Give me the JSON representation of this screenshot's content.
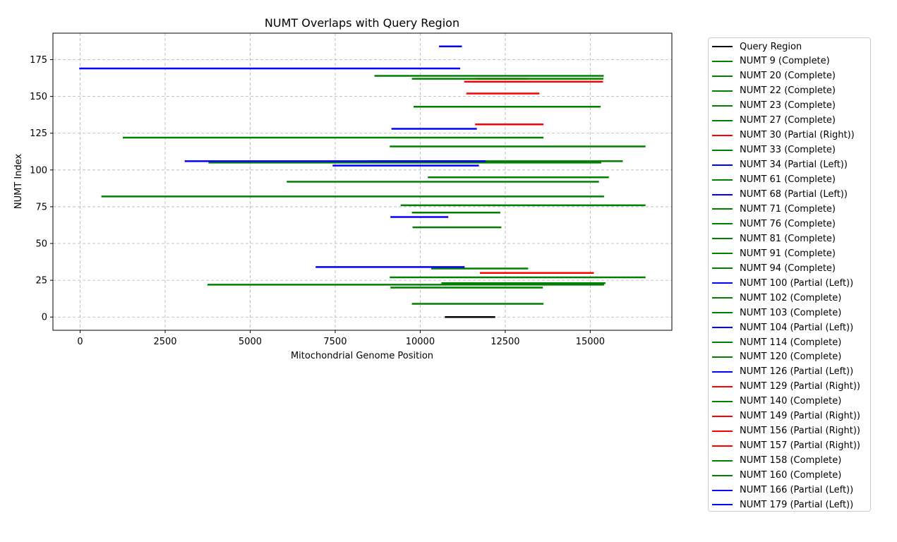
{
  "chart_data": {
    "type": "line",
    "title": "NUMT Overlaps with Query Region",
    "xlabel": "Mitochondrial Genome Position",
    "ylabel": "NUMT Index",
    "xlim": [
      -800,
      17400
    ],
    "ylim": [
      -9,
      193
    ],
    "xticks": [
      0,
      2500,
      5000,
      7500,
      10000,
      12500,
      15000
    ],
    "yticks": [
      0,
      25,
      50,
      75,
      100,
      125,
      150,
      175
    ],
    "grid": true,
    "legend_position": "outside-right",
    "colors": {
      "query": "#000000",
      "complete": "#008000",
      "partial_right": "#ff0000",
      "partial_left": "#0000ff"
    },
    "series": [
      {
        "name": "Query Region",
        "color": "#000000",
        "x": [
          10750,
          12180
        ],
        "y": 0
      },
      {
        "name": "NUMT 9 (Complete)",
        "color": "#008000",
        "x": [
          9780,
          13600
        ],
        "y": 9
      },
      {
        "name": "NUMT 20 (Complete)",
        "color": "#008000",
        "x": [
          9150,
          13580
        ],
        "y": 20
      },
      {
        "name": "NUMT 22 (Complete)",
        "color": "#008000",
        "x": [
          3770,
          15380
        ],
        "y": 22
      },
      {
        "name": "NUMT 23 (Complete)",
        "color": "#008000",
        "x": [
          10650,
          15420
        ],
        "y": 23
      },
      {
        "name": "NUMT 27 (Complete)",
        "color": "#008000",
        "x": [
          9130,
          16600
        ],
        "y": 27
      },
      {
        "name": "NUMT 30 (Partial (Right))",
        "color": "#ff0000",
        "x": [
          11780,
          15080
        ],
        "y": 30
      },
      {
        "name": "NUMT 33 (Complete)",
        "color": "#008000",
        "x": [
          10350,
          13150
        ],
        "y": 33
      },
      {
        "name": "NUMT 34 (Partial (Left))",
        "color": "#0000ff",
        "x": [
          6950,
          11280
        ],
        "y": 34
      },
      {
        "name": "NUMT 61 (Complete)",
        "color": "#008000",
        "x": [
          9800,
          12360
        ],
        "y": 61
      },
      {
        "name": "NUMT 68 (Partial (Left))",
        "color": "#0000ff",
        "x": [
          9150,
          10800
        ],
        "y": 68
      },
      {
        "name": "NUMT 71 (Complete)",
        "color": "#008000",
        "x": [
          9780,
          12330
        ],
        "y": 71
      },
      {
        "name": "NUMT 76 (Complete)",
        "color": "#008000",
        "x": [
          9450,
          16600
        ],
        "y": 76
      },
      {
        "name": "NUMT 81 (Complete)",
        "color": "#008000",
        "x": [
          650,
          15380
        ],
        "y": 82
      },
      {
        "name": "NUMT 91 (Complete)",
        "color": "#008000",
        "x": [
          6100,
          15230
        ],
        "y": 92
      },
      {
        "name": "NUMT 94 (Complete)",
        "color": "#008000",
        "x": [
          10250,
          15520
        ],
        "y": 95
      },
      {
        "name": "NUMT 100 (Partial (Left))",
        "color": "#0000ff",
        "x": [
          7450,
          11700
        ],
        "y": 103
      },
      {
        "name": "NUMT 102 (Complete)",
        "color": "#008000",
        "x": [
          3800,
          15300
        ],
        "y": 105
      },
      {
        "name": "NUMT 103 (Complete)",
        "color": "#008000",
        "x": [
          8500,
          15930
        ],
        "y": 106
      },
      {
        "name": "NUMT 104 (Partial (Left))",
        "color": "#0000ff",
        "x": [
          3100,
          11900
        ],
        "y": 106
      },
      {
        "name": "NUMT 114 (Complete)",
        "color": "#008000",
        "x": [
          9130,
          16600
        ],
        "y": 116
      },
      {
        "name": "NUMT 120 (Complete)",
        "color": "#008000",
        "x": [
          1280,
          13600
        ],
        "y": 122
      },
      {
        "name": "NUMT 126 (Partial (Left))",
        "color": "#0000ff",
        "x": [
          9180,
          11640
        ],
        "y": 128
      },
      {
        "name": "NUMT 129 (Partial (Right))",
        "color": "#ff0000",
        "x": [
          11640,
          13600
        ],
        "y": 131
      },
      {
        "name": "NUMT 140 (Complete)",
        "color": "#008000",
        "x": [
          9830,
          15280
        ],
        "y": 143
      },
      {
        "name": "NUMT 149 (Partial (Right))",
        "color": "#ff0000",
        "x": [
          11380,
          13480
        ],
        "y": 152
      },
      {
        "name": "NUMT 156 (Partial (Right))",
        "color": "#ff0000",
        "x": [
          11320,
          15350
        ],
        "y": 160
      },
      {
        "name": "NUMT 157 (Partial (Right))",
        "color": "#ff0000",
        "x": [
          11650,
          13150
        ],
        "y": 162
      },
      {
        "name": "NUMT 158 (Complete)",
        "color": "#008000",
        "x": [
          9780,
          15360
        ],
        "y": 162
      },
      {
        "name": "NUMT 160 (Complete)",
        "color": "#008000",
        "x": [
          8680,
          15370
        ],
        "y": 164
      },
      {
        "name": "NUMT 166 (Partial (Left))",
        "color": "#0000ff",
        "x": [
          0,
          11150
        ],
        "y": 169
      },
      {
        "name": "NUMT 179 (Partial (Left))",
        "color": "#0000ff",
        "x": [
          10580,
          11200
        ],
        "y": 184
      }
    ]
  }
}
